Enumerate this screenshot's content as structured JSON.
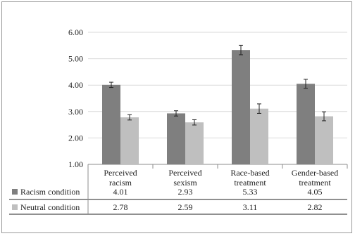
{
  "chart_data": {
    "type": "bar",
    "categories": [
      [
        "Perceived",
        "racism"
      ],
      [
        "Perceived",
        "sexism"
      ],
      [
        "Race-based",
        "treatment"
      ],
      [
        "Gender-based",
        "treatment"
      ]
    ],
    "ylim": [
      1.0,
      6.0
    ],
    "yticks": [
      "1.00",
      "2.00",
      "3.00",
      "4.00",
      "5.00",
      "6.00"
    ],
    "grid": true,
    "series": [
      {
        "name": "Racism condition",
        "color": "#7f7f7f",
        "values": [
          4.01,
          2.93,
          5.33,
          4.05
        ],
        "labels": [
          "4.01",
          "2.93",
          "5.33",
          "4.05"
        ],
        "errors": [
          0.1,
          0.1,
          0.18,
          0.17
        ]
      },
      {
        "name": "Neutral condition",
        "color": "#bfbfbf",
        "values": [
          2.78,
          2.59,
          3.11,
          2.82
        ],
        "labels": [
          "2.78",
          "2.59",
          "3.11",
          "2.82"
        ],
        "errors": [
          0.1,
          0.1,
          0.18,
          0.17
        ]
      }
    ]
  }
}
